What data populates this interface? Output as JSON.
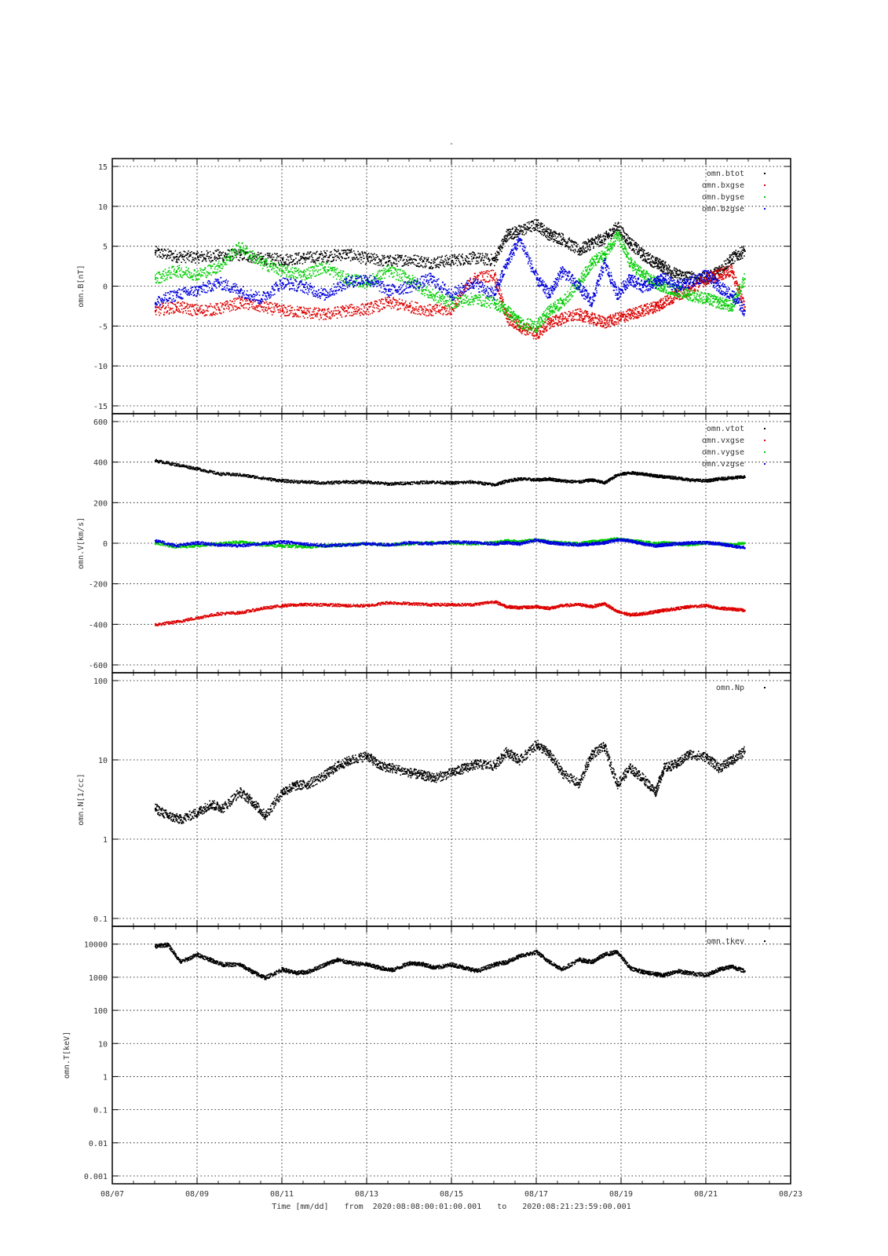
{
  "header": {
    "title": "-"
  },
  "footer": {
    "xlabel": "Time [mm/dd]",
    "from_label": "from",
    "from_time": "2020:08:08:00:01:00.001",
    "to_label": "to",
    "to_time": "2020:08:21:23:59:00.001"
  },
  "x_ticks": [
    "08/07",
    "08/09",
    "08/11",
    "08/13",
    "08/15",
    "08/17",
    "08/19",
    "08/21",
    "08/23"
  ],
  "chart_data": [
    {
      "type": "scatter",
      "ylabel": "omn.B[nT]",
      "scale": "linear",
      "ylim": [
        -15,
        15
      ],
      "yticks": [
        -15,
        -10,
        -5,
        0,
        5,
        10,
        15
      ],
      "xlim_days": [
        7,
        23
      ],
      "legend_position": "top-right",
      "series": [
        {
          "name": "omn.btot",
          "color": "#000000",
          "x": [
            8.0,
            8.5,
            9.0,
            9.5,
            10.0,
            10.5,
            11.0,
            11.5,
            12.0,
            12.5,
            13.0,
            13.5,
            14.0,
            14.5,
            15.0,
            15.5,
            16.0,
            16.3,
            16.6,
            17.0,
            17.3,
            17.6,
            18.0,
            18.3,
            18.6,
            18.9,
            19.2,
            19.5,
            19.8,
            20.0,
            20.3,
            20.6,
            21.0,
            21.3,
            21.6,
            21.9
          ],
          "y": [
            4.3,
            3.8,
            3.7,
            3.9,
            4.0,
            3.5,
            3.4,
            3.6,
            3.8,
            4.1,
            3.5,
            3.2,
            3.4,
            3.0,
            3.3,
            3.6,
            3.3,
            6.5,
            7.0,
            7.8,
            6.5,
            6.0,
            4.5,
            5.5,
            6.0,
            7.5,
            5.5,
            4.0,
            3.0,
            2.5,
            1.5,
            1.2,
            1.0,
            2.0,
            3.5,
            4.5
          ]
        },
        {
          "name": "omn.bxgse",
          "color": "#dd0000",
          "x": [
            8.0,
            8.5,
            9.0,
            9.5,
            10.0,
            10.5,
            11.0,
            11.5,
            12.0,
            12.5,
            13.0,
            13.5,
            14.0,
            14.5,
            15.0,
            15.5,
            16.0,
            16.3,
            16.6,
            17.0,
            17.3,
            17.6,
            18.0,
            18.3,
            18.6,
            18.9,
            19.2,
            19.5,
            19.8,
            20.0,
            20.3,
            20.6,
            21.0,
            21.3,
            21.6,
            21.9
          ],
          "y": [
            -3.0,
            -2.5,
            -3.0,
            -2.8,
            -2.0,
            -2.5,
            -3.0,
            -3.2,
            -3.5,
            -3.0,
            -2.8,
            -2.0,
            -2.5,
            -3.0,
            -2.8,
            1.0,
            1.5,
            -4.0,
            -5.0,
            -6.0,
            -4.5,
            -4.0,
            -3.5,
            -4.0,
            -4.5,
            -4.0,
            -3.5,
            -3.0,
            -2.5,
            -2.0,
            -1.0,
            -0.5,
            1.0,
            1.5,
            2.0,
            -2.5
          ]
        },
        {
          "name": "omn.bygse",
          "color": "#00cc00",
          "x": [
            8.0,
            8.5,
            9.0,
            9.5,
            10.0,
            10.5,
            11.0,
            11.5,
            12.0,
            12.5,
            13.0,
            13.5,
            14.0,
            14.5,
            15.0,
            15.5,
            16.0,
            16.3,
            16.6,
            17.0,
            17.3,
            17.6,
            18.0,
            18.3,
            18.6,
            18.9,
            19.2,
            19.5,
            19.8,
            20.0,
            20.3,
            20.6,
            21.0,
            21.3,
            21.6,
            21.9
          ],
          "y": [
            1.0,
            2.0,
            1.5,
            2.5,
            5.0,
            3.0,
            2.0,
            1.5,
            2.5,
            1.0,
            0.5,
            2.0,
            1.0,
            -1.0,
            -2.0,
            -1.5,
            -2.0,
            -3.0,
            -4.5,
            -5.0,
            -3.0,
            -2.0,
            0.5,
            3.0,
            4.0,
            6.5,
            3.0,
            1.5,
            0.5,
            0.0,
            -0.5,
            -1.0,
            -1.5,
            -2.0,
            -2.5,
            1.0
          ]
        },
        {
          "name": "omn.bzgse",
          "color": "#0000dd",
          "x": [
            8.0,
            8.5,
            9.0,
            9.5,
            10.0,
            10.5,
            11.0,
            11.5,
            12.0,
            12.5,
            13.0,
            13.5,
            14.0,
            14.5,
            15.0,
            15.5,
            16.0,
            16.3,
            16.6,
            17.0,
            17.3,
            17.6,
            18.0,
            18.3,
            18.6,
            18.9,
            19.2,
            19.5,
            19.8,
            20.0,
            20.3,
            20.6,
            21.0,
            21.3,
            21.6,
            21.9
          ],
          "y": [
            -2.0,
            -1.0,
            -0.5,
            0.5,
            -0.5,
            -1.5,
            0.5,
            0.0,
            -1.0,
            0.5,
            1.0,
            -0.5,
            0.0,
            1.0,
            -1.0,
            0.5,
            -1.0,
            3.0,
            6.0,
            1.0,
            -1.0,
            2.0,
            0.0,
            -2.0,
            3.0,
            -1.0,
            1.0,
            0.0,
            0.5,
            1.0,
            0.0,
            0.5,
            1.5,
            0.0,
            -1.0,
            -3.0
          ]
        }
      ]
    },
    {
      "type": "scatter",
      "ylabel": "omn.V[km/s]",
      "scale": "linear",
      "ylim": [
        -600,
        600
      ],
      "yticks": [
        -600,
        -400,
        -200,
        0,
        200,
        400,
        600
      ],
      "xlim_days": [
        7,
        23
      ],
      "legend_position": "top-right",
      "series": [
        {
          "name": "omn.vtot",
          "color": "#000000",
          "x": [
            8.0,
            8.5,
            9.0,
            9.5,
            10.0,
            10.5,
            11.0,
            11.5,
            12.0,
            12.5,
            13.0,
            13.5,
            14.0,
            14.5,
            15.0,
            15.5,
            16.0,
            16.3,
            16.6,
            17.0,
            17.3,
            17.6,
            18.0,
            18.3,
            18.6,
            18.9,
            19.2,
            19.5,
            19.8,
            20.0,
            20.3,
            20.6,
            21.0,
            21.3,
            21.6,
            21.9
          ],
          "y": [
            410,
            390,
            370,
            345,
            340,
            325,
            310,
            305,
            300,
            305,
            305,
            295,
            300,
            305,
            300,
            305,
            290,
            310,
            320,
            315,
            320,
            310,
            305,
            315,
            300,
            340,
            350,
            345,
            335,
            330,
            325,
            315,
            310,
            320,
            325,
            330
          ]
        },
        {
          "name": "omn.vxgse",
          "color": "#dd0000",
          "x": [
            8.0,
            8.5,
            9.0,
            9.5,
            10.0,
            10.5,
            11.0,
            11.5,
            12.0,
            12.5,
            13.0,
            13.5,
            14.0,
            14.5,
            15.0,
            15.5,
            16.0,
            16.3,
            16.6,
            17.0,
            17.3,
            17.6,
            18.0,
            18.3,
            18.6,
            18.9,
            19.2,
            19.5,
            19.8,
            20.0,
            20.3,
            20.6,
            21.0,
            21.3,
            21.6,
            21.9
          ],
          "y": [
            -400,
            -385,
            -365,
            -345,
            -340,
            -320,
            -305,
            -300,
            -300,
            -305,
            -305,
            -290,
            -295,
            -300,
            -300,
            -300,
            -285,
            -310,
            -315,
            -310,
            -318,
            -305,
            -300,
            -310,
            -295,
            -335,
            -350,
            -345,
            -335,
            -328,
            -320,
            -310,
            -305,
            -318,
            -322,
            -328
          ]
        },
        {
          "name": "omn.vygse",
          "color": "#00cc00",
          "x": [
            8.0,
            8.5,
            9.0,
            9.5,
            10.0,
            10.5,
            11.0,
            11.5,
            12.0,
            12.5,
            13.0,
            13.5,
            14.0,
            14.5,
            15.0,
            15.5,
            16.0,
            16.3,
            16.6,
            17.0,
            17.3,
            17.6,
            18.0,
            18.3,
            18.6,
            18.9,
            19.2,
            19.5,
            19.8,
            20.0,
            20.3,
            20.6,
            21.0,
            21.3,
            21.6,
            21.9
          ],
          "y": [
            5,
            -15,
            -10,
            0,
            10,
            -5,
            -10,
            -15,
            -10,
            -5,
            0,
            -5,
            0,
            5,
            5,
            0,
            5,
            15,
            10,
            20,
            10,
            5,
            0,
            10,
            15,
            25,
            15,
            10,
            0,
            5,
            0,
            -5,
            5,
            0,
            -5,
            5
          ]
        },
        {
          "name": "omn.vzgse",
          "color": "#0000dd",
          "x": [
            8.0,
            8.5,
            9.0,
            9.5,
            10.0,
            10.5,
            11.0,
            11.5,
            12.0,
            12.5,
            13.0,
            13.5,
            14.0,
            14.5,
            15.0,
            15.5,
            16.0,
            16.3,
            16.6,
            17.0,
            17.3,
            17.6,
            18.0,
            18.3,
            18.6,
            18.9,
            19.2,
            19.5,
            19.8,
            20.0,
            20.3,
            20.6,
            21.0,
            21.3,
            21.6,
            21.9
          ],
          "y": [
            15,
            -10,
            5,
            -5,
            -10,
            0,
            10,
            0,
            -10,
            -5,
            0,
            -5,
            5,
            0,
            10,
            5,
            0,
            5,
            0,
            20,
            5,
            0,
            -5,
            0,
            5,
            20,
            15,
            0,
            -10,
            -5,
            0,
            5,
            5,
            0,
            -10,
            -20
          ]
        }
      ]
    },
    {
      "type": "scatter",
      "ylabel": "omn.N[1/cc]",
      "scale": "log",
      "ylim": [
        0.1,
        100
      ],
      "yticks": [
        0.1,
        1,
        10,
        100
      ],
      "ytick_labels": [
        "0.1",
        "1",
        "10",
        "100"
      ],
      "xlim_days": [
        7,
        23
      ],
      "legend_position": "top-right",
      "series": [
        {
          "name": "omn.Np",
          "color": "#000000",
          "x": [
            8.0,
            8.3,
            8.6,
            9.0,
            9.3,
            9.6,
            10.0,
            10.3,
            10.6,
            11.0,
            11.3,
            11.6,
            12.0,
            12.3,
            12.6,
            13.0,
            13.3,
            13.6,
            14.0,
            14.3,
            14.6,
            15.0,
            15.3,
            15.6,
            16.0,
            16.3,
            16.6,
            17.0,
            17.3,
            17.6,
            18.0,
            18.3,
            18.6,
            18.9,
            19.2,
            19.5,
            19.8,
            20.0,
            20.3,
            20.6,
            21.0,
            21.3,
            21.6,
            21.9
          ],
          "y": [
            2.5,
            2.0,
            1.8,
            2.2,
            2.8,
            2.5,
            4.0,
            3.0,
            2.0,
            4.0,
            4.8,
            5.0,
            6.5,
            8.5,
            10.0,
            11.5,
            8.5,
            8.0,
            7.0,
            6.5,
            6.0,
            7.0,
            8.0,
            9.0,
            8.5,
            13.0,
            10.0,
            16.0,
            12.0,
            7.0,
            5.0,
            12.0,
            15.0,
            5.0,
            8.0,
            6.0,
            4.0,
            8.0,
            9.0,
            12.0,
            11.0,
            8.0,
            10.0,
            13.0
          ]
        }
      ]
    },
    {
      "type": "scatter",
      "ylabel": "omn.T[keV]",
      "scale": "log",
      "ylim": [
        0.001,
        20000
      ],
      "yticks": [
        0.001,
        0.01,
        0.1,
        1,
        10,
        100,
        1000,
        10000
      ],
      "ytick_labels": [
        "0.001",
        "0.01",
        "0.1",
        "1",
        "10",
        "100",
        "1000",
        "10000"
      ],
      "xlim_days": [
        7,
        23
      ],
      "legend_position": "top-right",
      "series": [
        {
          "name": "omn.tkev",
          "color": "#000000",
          "x": [
            8.0,
            8.3,
            8.6,
            9.0,
            9.3,
            9.6,
            10.0,
            10.3,
            10.6,
            11.0,
            11.3,
            11.6,
            12.0,
            12.3,
            12.6,
            13.0,
            13.3,
            13.6,
            14.0,
            14.3,
            14.6,
            15.0,
            15.3,
            15.6,
            16.0,
            16.3,
            16.6,
            17.0,
            17.3,
            17.6,
            18.0,
            18.3,
            18.6,
            18.9,
            19.2,
            19.5,
            19.8,
            20.0,
            20.3,
            20.6,
            21.0,
            21.3,
            21.6,
            21.9
          ],
          "y": [
            9000,
            10000,
            3000,
            5000,
            3500,
            2500,
            2500,
            1500,
            1000,
            1800,
            1400,
            1500,
            2500,
            3500,
            2800,
            2500,
            2000,
            1700,
            2800,
            2600,
            2000,
            2500,
            2000,
            1600,
            2500,
            3000,
            4500,
            6000,
            3000,
            1800,
            3500,
            3000,
            5000,
            6000,
            2000,
            1500,
            1300,
            1200,
            1600,
            1400,
            1200,
            1800,
            2200,
            1600
          ]
        }
      ]
    }
  ]
}
